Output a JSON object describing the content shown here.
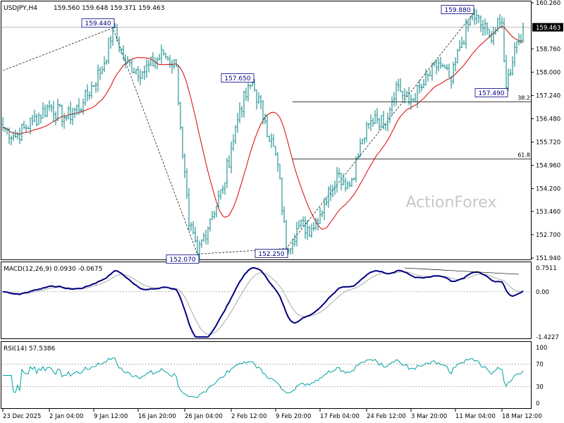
{
  "header": {
    "symbol": "USDJPY,H4",
    "ohlc": "159.560 159.648 159.371 159.463"
  },
  "watermark": "ActionForex",
  "colors": {
    "candle": "#008080",
    "ma": "#dd0000",
    "macd": "#000080",
    "signal": "#aaaaaa",
    "rsi": "#00a0a0",
    "fib_line": "#000000",
    "trend_line": "#000000",
    "last_price_bg": "#000000"
  },
  "chart_data": [
    {
      "type": "candlestick",
      "panel": "price",
      "ylim": [
        151.94,
        160.26
      ],
      "y_ticks": [
        "160.260",
        "159.463",
        "158.760",
        "158.000",
        "157.240",
        "156.480",
        "155.720",
        "154.960",
        "154.200",
        "153.460",
        "152.700",
        "151.940"
      ],
      "x_ticks": [
        "23 Dec 2025",
        "2 Jan 04:00",
        "9 Jan 12:00",
        "16 Jan 20:00",
        "26 Jan 04:00",
        "2 Feb 12:00",
        "9 Feb 20:00",
        "17 Feb 04:00",
        "24 Feb 12:00",
        "3 Mar 20:00",
        "11 Mar 04:00",
        "18 Mar 12:00"
      ],
      "last_price": "159.463",
      "price_anchors": [
        [
          0,
          156.2
        ],
        [
          6,
          155.9
        ],
        [
          14,
          156.4
        ],
        [
          22,
          156.9
        ],
        [
          30,
          156.5
        ],
        [
          38,
          157.0
        ],
        [
          48,
          158.3
        ],
        [
          52,
          159.44
        ],
        [
          58,
          158.3
        ],
        [
          66,
          158.0
        ],
        [
          76,
          158.6
        ],
        [
          82,
          158.2
        ],
        [
          84,
          156.2
        ],
        [
          88,
          153.0
        ],
        [
          92,
          152.07
        ],
        [
          98,
          153.2
        ],
        [
          104,
          154.2
        ],
        [
          108,
          155.5
        ],
        [
          112,
          156.8
        ],
        [
          118,
          157.65
        ],
        [
          124,
          156.4
        ],
        [
          130,
          155.0
        ],
        [
          134,
          152.25
        ],
        [
          140,
          153.0
        ],
        [
          146,
          152.9
        ],
        [
          152,
          153.7
        ],
        [
          158,
          154.7
        ],
        [
          164,
          154.3
        ],
        [
          170,
          155.8
        ],
        [
          176,
          156.6
        ],
        [
          180,
          156.3
        ],
        [
          186,
          157.6
        ],
        [
          192,
          157.0
        ],
        [
          198,
          157.5
        ],
        [
          206,
          158.3
        ],
        [
          212,
          157.7
        ],
        [
          216,
          158.8
        ],
        [
          222,
          159.88
        ],
        [
          230,
          159.2
        ],
        [
          236,
          159.6
        ],
        [
          238,
          157.49
        ],
        [
          242,
          158.8
        ],
        [
          246,
          159.46
        ]
      ],
      "annotations": [
        {
          "label": "159.440",
          "bar": 52,
          "price": 159.44,
          "pos": "above"
        },
        {
          "label": "152.070",
          "bar": 92,
          "price": 152.07,
          "pos": "below"
        },
        {
          "label": "157.650",
          "bar": 118,
          "price": 157.65,
          "pos": "above"
        },
        {
          "label": "152.250",
          "bar": 134,
          "price": 152.25,
          "pos": "below"
        },
        {
          "label": "159.880",
          "bar": 222,
          "price": 159.88,
          "pos": "above"
        },
        {
          "label": "157.490",
          "bar": 238,
          "price": 157.49,
          "pos": "below"
        }
      ],
      "fib_levels": [
        {
          "label": "38.2",
          "price": 157.03
        },
        {
          "label": "61.8",
          "price": 155.17
        }
      ]
    },
    {
      "type": "line",
      "panel": "macd",
      "title": "MACD(12,26,9) 0.0930 -0.0675",
      "ylim": [
        -1.4227,
        0.7511
      ],
      "y_ticks": [
        "0.7511",
        "0.00",
        "-1.4227"
      ]
    },
    {
      "type": "line",
      "panel": "rsi",
      "title": "RSI(14) 57.5386",
      "ylim": [
        0,
        100
      ],
      "y_ticks": [
        "100",
        "70",
        "30",
        "0"
      ]
    }
  ]
}
